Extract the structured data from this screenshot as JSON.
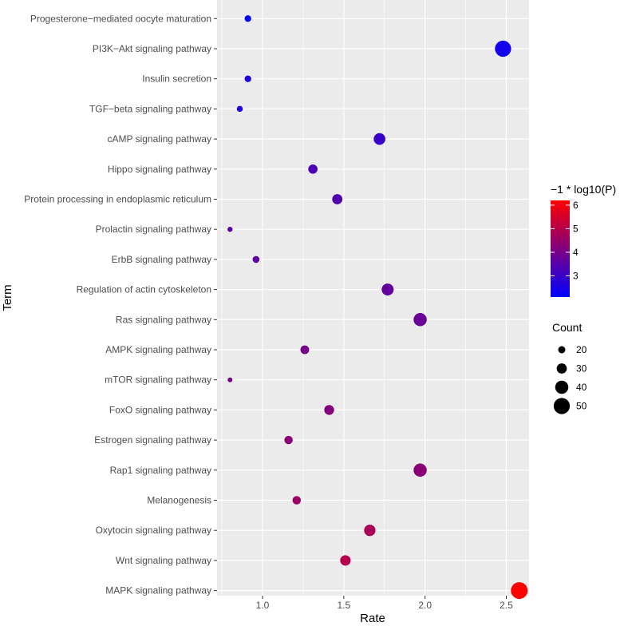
{
  "chart_data": {
    "type": "scatter",
    "xlabel": "Rate",
    "ylabel": "Term",
    "xlim": [
      0.72,
      2.64
    ],
    "x_ticks": [
      1.0,
      1.5,
      2.0,
      2.5
    ],
    "x_tick_labels": [
      "1.0",
      "1.5",
      "2.0",
      "2.5"
    ],
    "grid": true,
    "terms": [
      "Progesterone−mediated oocyte maturation",
      "PI3K−Akt signaling pathway",
      "Insulin secretion",
      "TGF−beta signaling pathway",
      "cAMP signaling pathway",
      "Hippo signaling pathway",
      "Protein processing in endoplasmic reticulum",
      "Prolactin signaling pathway",
      "ErbB signaling pathway",
      "Regulation of actin cytoskeleton",
      "Ras signaling pathway",
      "AMPK signaling pathway",
      "mTOR signaling pathway",
      "FoxO signaling pathway",
      "Estrogen signaling pathway",
      "Rap1 signaling pathway",
      "Melanogenesis",
      "Oxytocin signaling pathway",
      "Wnt signaling pathway",
      "MAPK signaling pathway"
    ],
    "points": [
      {
        "term": "Progesterone−mediated oocyte maturation",
        "rate": 0.91,
        "count": 18,
        "neg_log10_p": 2.1
      },
      {
        "term": "PI3K−Akt signaling pathway",
        "rate": 2.48,
        "count": 50,
        "neg_log10_p": 2.4
      },
      {
        "term": "Insulin secretion",
        "rate": 0.91,
        "count": 18,
        "neg_log10_p": 2.5
      },
      {
        "term": "TGF−beta signaling pathway",
        "rate": 0.86,
        "count": 16,
        "neg_log10_p": 2.6
      },
      {
        "term": "cAMP signaling pathway",
        "rate": 1.72,
        "count": 35,
        "neg_log10_p": 3.0
      },
      {
        "term": "Hippo signaling pathway",
        "rate": 1.31,
        "count": 27,
        "neg_log10_p": 3.3
      },
      {
        "term": "Protein processing in endoplasmic reticulum",
        "rate": 1.46,
        "count": 30,
        "neg_log10_p": 3.4
      },
      {
        "term": "Prolactin signaling pathway",
        "rate": 0.8,
        "count": 13,
        "neg_log10_p": 3.5
      },
      {
        "term": "ErbB signaling pathway",
        "rate": 0.96,
        "count": 19,
        "neg_log10_p": 3.6
      },
      {
        "term": "Regulation of actin cytoskeleton",
        "rate": 1.77,
        "count": 36,
        "neg_log10_p": 3.7
      },
      {
        "term": "Ras signaling pathway",
        "rate": 1.97,
        "count": 40,
        "neg_log10_p": 3.8
      },
      {
        "term": "AMPK signaling pathway",
        "rate": 1.26,
        "count": 25,
        "neg_log10_p": 4.0
      },
      {
        "term": "mTOR signaling pathway",
        "rate": 0.8,
        "count": 12,
        "neg_log10_p": 4.0
      },
      {
        "term": "FoxO signaling pathway",
        "rate": 1.41,
        "count": 29,
        "neg_log10_p": 4.2
      },
      {
        "term": "Estrogen signaling pathway",
        "rate": 1.16,
        "count": 24,
        "neg_log10_p": 4.3
      },
      {
        "term": "Rap1 signaling pathway",
        "rate": 1.97,
        "count": 40,
        "neg_log10_p": 4.3
      },
      {
        "term": "Melanogenesis",
        "rate": 1.21,
        "count": 24,
        "neg_log10_p": 4.6
      },
      {
        "term": "Oxytocin signaling pathway",
        "rate": 1.66,
        "count": 34,
        "neg_log10_p": 4.8
      },
      {
        "term": "Wnt signaling pathway",
        "rate": 1.51,
        "count": 31,
        "neg_log10_p": 5.0
      },
      {
        "term": "MAPK signaling pathway",
        "rate": 2.58,
        "count": 52,
        "neg_log10_p": 6.2
      }
    ],
    "color_legend": {
      "title": "−1 * log10(P)",
      "min": 2.1,
      "max": 6.2,
      "breaks": [
        3,
        4,
        5,
        6
      ],
      "break_labels": [
        "3",
        "4",
        "5",
        "6"
      ],
      "low_color": "#0000ff",
      "high_color": "#ff0000"
    },
    "size_legend": {
      "title": "Count",
      "breaks": [
        20,
        30,
        40,
        50
      ],
      "break_labels": [
        "20",
        "30",
        "40",
        "50"
      ],
      "min_count": 12,
      "max_count": 52
    },
    "panel_background": "#ebebeb",
    "grid_color": "#ffffff"
  }
}
